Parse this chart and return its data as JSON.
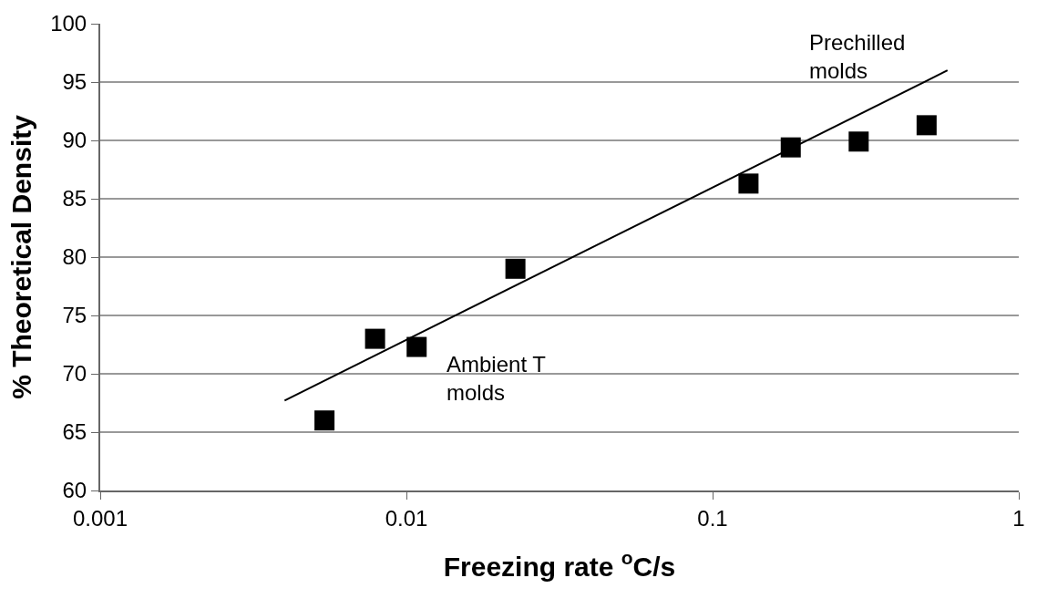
{
  "chart_data": {
    "type": "scatter",
    "xlabel": "Freezing rate $^{o}$C/s",
    "ylabel": "% Theoretical Density",
    "log": "x",
    "grid": "y",
    "xlim": [
      0.001,
      1
    ],
    "xticks": [
      0.001,
      0.01,
      0.1,
      1
    ],
    "ylim": [
      60,
      100
    ],
    "yticks": [
      60,
      65,
      70,
      75,
      80,
      85,
      90,
      95,
      100
    ],
    "series": [
      {
        "color": "#000000",
        "marker": "square",
        "x": [
          0.0054,
          0.0079,
          0.0108,
          0.0227,
          0.131,
          0.18,
          0.3,
          0.5
        ],
        "values": [
          66.0,
          73.0,
          72.3,
          79.0,
          86.3,
          89.4,
          89.9,
          91.3
        ]
      },
      {
        "type": "line",
        "color": "#000000",
        "marker": "none",
        "line_style": "solid",
        "x": [
          0.004,
          0.585
        ],
        "values": [
          67.7,
          96.0
        ]
      }
    ],
    "annotations": [
      "Prechilled\nmolds",
      "Ambient T\nmolds"
    ]
  }
}
